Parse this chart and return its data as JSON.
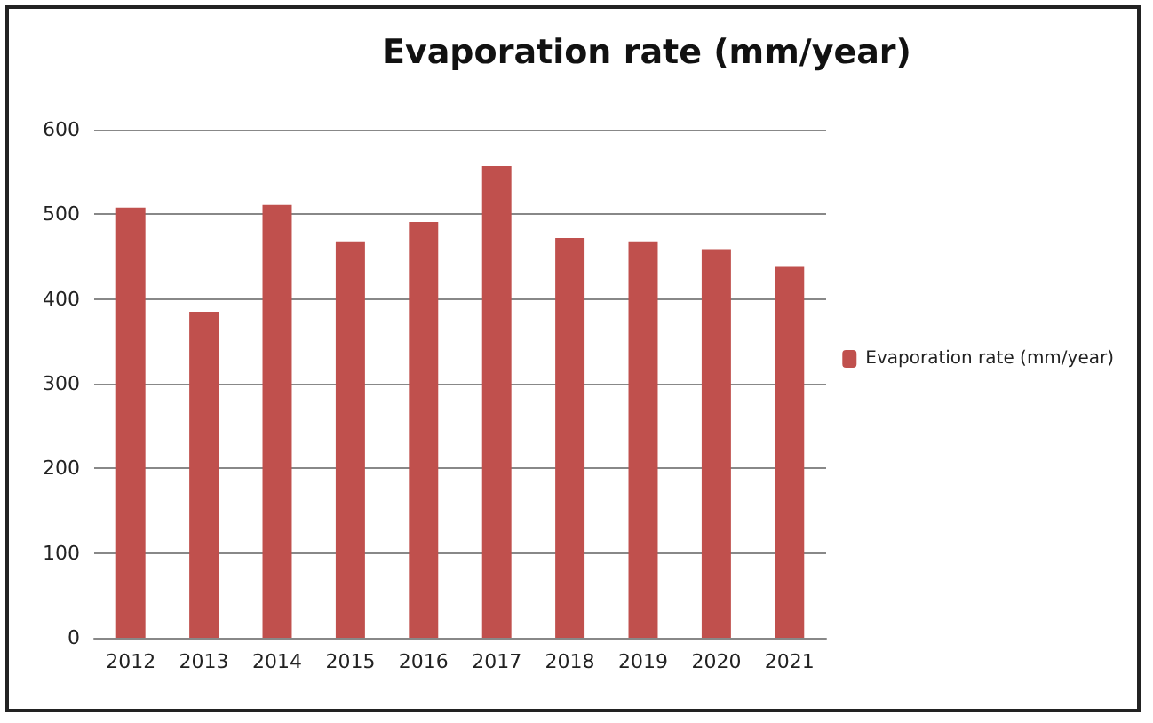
{
  "chart_data": {
    "type": "bar",
    "title": "Evaporation rate (mm/year)",
    "categories": [
      "2012",
      "2013",
      "2014",
      "2015",
      "2016",
      "2017",
      "2018",
      "2019",
      "2020",
      "2021"
    ],
    "series": [
      {
        "name": "Evaporation rate (mm/year)",
        "color": "#c0504d",
        "values": [
          508,
          385,
          511,
          468,
          491,
          557,
          472,
          468,
          459,
          438
        ]
      }
    ],
    "ylim": [
      0,
      600
    ],
    "yticks": [
      0,
      100,
      200,
      300,
      400,
      500,
      600
    ],
    "grid": "y",
    "legend": "right"
  }
}
